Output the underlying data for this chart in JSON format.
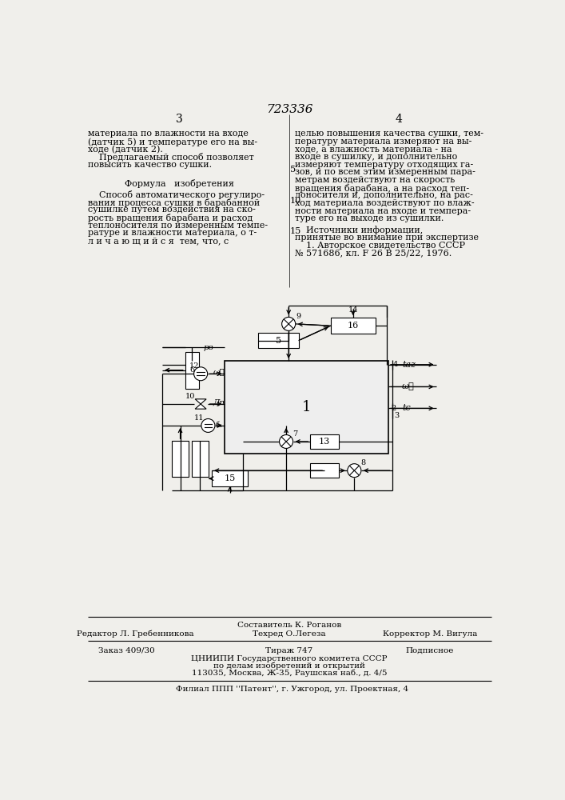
{
  "bg_color": "#f0efeb",
  "patent_number": "723336",
  "page_left": "3",
  "page_right": "4",
  "col_left": [
    "материала по влажности на входе",
    "(датчик 5) и температуре его на вы-",
    "ходе (датчик 2).",
    "    Предлагаемый способ позволяет",
    "повысить качество сушки."
  ],
  "formula_title": "Формула   изобретения",
  "formula_text": [
    "    Способ автоматического регулиро-",
    "вания процесса сушки в барабанной",
    "сушилке путем воздействия на ско-",
    "рость вращения барабана и расход",
    "теплоносителя по измеренным темпе-",
    "ратуре и влажности материала, о т-",
    "л и ч а ю щ и й с я  тем, что, с"
  ],
  "col_right": [
    "целью повышения качества сушки, тем-",
    "пературу материала измеряют на вы-",
    "ходе, а влажность материала - на",
    "входе в сушилку, и дополнительно",
    "измеряют температуру отходящих га-",
    "зов, и по всем этим измеренным пара-",
    "метрам воздействуют на скорость",
    "вращения барабана, а на расход теп-",
    "лоносителя и, дополнительно, на рас-",
    "ход материала воздействуют по влаж-",
    "ности материала на входе и темпера-",
    "туре его на выходе из сушилки."
  ],
  "ref_title": "    Источники информации,",
  "ref_subtitle": "принятые во внимание при экспертизе",
  "ref_text": "    1. Авторское свидетельство СССР",
  "ref_text2": "№ 571686, кл. F 26 B 25/22, 1976.",
  "linenum5": "5",
  "linenum10": "10",
  "linenum15": "15",
  "footer_composer": "Составитель К. Роганов",
  "footer_editor": "Редактор Л. Гребенникова",
  "footer_tech": "Техред О.Легеза",
  "footer_corrector": "Корректор М. Вигула",
  "footer_order": "Заказ 409/30",
  "footer_edition": "Тираж 747",
  "footer_sign": "Подписное",
  "footer_org1": "ЦНИИПИ Государственного комитета СССР",
  "footer_org2": "по делам изобретений и открытий",
  "footer_org3": "113035, Москва, Ж-35, Раушская наб., д. 4/5",
  "footer_affiliate": "Филиал ППП ''Патент'', г. Ужгород, ул. Проектная, 4"
}
